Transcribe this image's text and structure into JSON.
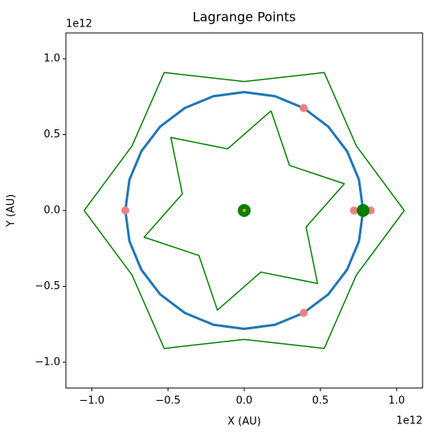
{
  "chart_data": {
    "type": "line",
    "title": "Lagrange Points",
    "xlabel": "X (AU)",
    "ylabel": "Y (AU)",
    "x_offset_label": "1e12",
    "y_offset_label": "1e12",
    "xlim": [
      -1.17,
      1.17
    ],
    "ylim": [
      -1.17,
      1.17
    ],
    "xticks": [
      {
        "value": -1,
        "label": "−1.0"
      },
      {
        "value": -0.5,
        "label": "−0.5"
      },
      {
        "value": 0,
        "label": "0.0"
      },
      0.5,
      {
        "value": 1,
        "label": "1.0"
      }
    ],
    "yticks": [
      {
        "value": -1,
        "label": "−1.0"
      },
      {
        "value": -0.5,
        "label": "−0.5"
      },
      {
        "value": 0,
        "label": "0.0"
      },
      0.5,
      {
        "value": 1,
        "label": "1.0"
      }
    ],
    "grid": false,
    "series": [
      {
        "type": "line",
        "color": "#008000",
        "width": 1.5,
        "x": [
          1.05,
          0.736,
          0.525,
          0,
          -0.525,
          -0.736,
          -1.05,
          -0.736,
          -0.525,
          0,
          0.525,
          0.736,
          1.05
        ],
        "values": [
          0,
          0.425,
          0.909,
          0.85,
          0.909,
          0.425,
          0,
          -0.425,
          -0.909,
          -0.85,
          -0.909,
          -0.425,
          0
        ]
      },
      {
        "type": "line",
        "color": "#008000",
        "width": 1.5,
        "x": [
          0.176,
          -0.109,
          -0.481,
          -0.406,
          -0.657,
          -0.297,
          -0.176,
          0.109,
          0.481,
          0.406,
          0.657,
          0.297,
          0.176
        ],
        "values": [
          0.657,
          0.406,
          0.481,
          0.109,
          -0.176,
          -0.297,
          -0.657,
          -0.406,
          -0.481,
          -0.109,
          0.176,
          0.297,
          0.657
        ]
      },
      {
        "type": "line",
        "color": "#1f77b4",
        "width": 3,
        "x": [
          0.78,
          0.753,
          0.675,
          0.552,
          0.39,
          0.202,
          0,
          -0.202,
          -0.39,
          -0.552,
          -0.675,
          -0.753,
          -0.78,
          -0.753,
          -0.675,
          -0.552,
          -0.39,
          -0.202,
          0,
          0.202,
          0.39,
          0.552,
          0.675,
          0.753,
          0.78
        ],
        "values": [
          0,
          0.202,
          0.39,
          0.552,
          0.675,
          0.753,
          0.78,
          0.753,
          0.675,
          0.552,
          0.39,
          0.202,
          0,
          -0.202,
          -0.39,
          -0.552,
          -0.675,
          -0.753,
          -0.78,
          -0.753,
          -0.675,
          -0.552,
          -0.39,
          -0.202,
          0
        ]
      },
      {
        "type": "scatter",
        "color": "#f08080",
        "size": 5,
        "x": [
          0.72,
          0.83,
          -0.78,
          0.39,
          0.39
        ],
        "values": [
          0,
          0,
          0,
          0.675,
          -0.675
        ]
      },
      {
        "type": "scatter",
        "color": "#008000",
        "size": 8,
        "x": [
          0,
          0.78
        ],
        "values": [
          0,
          0
        ]
      },
      {
        "type": "scatter",
        "color": "#ffa500",
        "size": 2,
        "x": [
          0
        ],
        "values": [
          0
        ]
      }
    ]
  }
}
